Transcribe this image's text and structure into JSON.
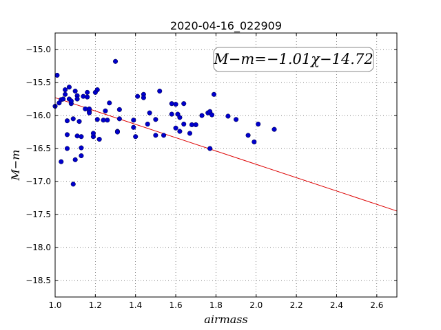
{
  "chart_data": {
    "type": "scatter",
    "title": "2020-04-16_022909",
    "xlabel": "airmass",
    "ylabel": "M−m",
    "xlim": [
      1.0,
      2.7
    ],
    "ylim": [
      -18.75,
      -14.75
    ],
    "y_inverted": true,
    "grid": true,
    "xticks": [
      1.0,
      1.2,
      1.4,
      1.6,
      1.8,
      2.0,
      2.2,
      2.4,
      2.6
    ],
    "xtick_labels": [
      "1.0",
      "1.2",
      "1.4",
      "1.6",
      "1.8",
      "2.0",
      "2.2",
      "2.4",
      "2.6"
    ],
    "yticks": [
      -15.0,
      -15.5,
      -16.0,
      -16.5,
      -17.0,
      -17.5,
      -18.0,
      -18.5
    ],
    "ytick_labels": [
      "−15.0",
      "−15.5",
      "−16.0",
      "−16.5",
      "−17.0",
      "−17.5",
      "−18.0",
      "−18.5"
    ],
    "annotation": "M−m=−1.01χ−14.72",
    "point_color": "#0000cc",
    "line_color": "#dd0000",
    "fit_line": {
      "slope": -1.01,
      "intercept": -14.72
    },
    "series": [
      {
        "x": [
          1.0,
          1.01,
          1.02,
          1.03,
          1.03,
          1.04,
          1.05,
          1.05,
          1.06,
          1.06,
          1.06,
          1.07,
          1.07,
          1.08,
          1.08,
          1.09,
          1.09,
          1.1,
          1.1,
          1.11,
          1.11,
          1.11,
          1.12,
          1.13,
          1.13,
          1.13,
          1.14,
          1.15,
          1.16,
          1.16,
          1.17,
          1.17,
          1.17,
          1.19,
          1.19,
          1.2,
          1.21,
          1.21,
          1.22,
          1.24,
          1.25,
          1.26,
          1.27,
          1.3,
          1.31,
          1.31,
          1.32,
          1.32,
          1.39,
          1.39,
          1.4,
          1.41,
          1.44,
          1.44,
          1.46,
          1.47,
          1.5,
          1.5,
          1.52,
          1.54,
          1.58,
          1.58,
          1.6,
          1.6,
          1.61,
          1.62,
          1.62,
          1.64,
          1.64,
          1.67,
          1.68,
          1.7,
          1.73,
          1.76,
          1.77,
          1.77,
          1.78,
          1.79,
          1.86,
          1.9,
          1.96,
          1.99,
          2.01,
          2.09
        ],
        "y": [
          -15.86,
          -15.39,
          -15.81,
          -16.7,
          -15.76,
          -15.75,
          -15.68,
          -15.61,
          -16.08,
          -16.29,
          -16.5,
          -15.57,
          -15.75,
          -15.82,
          -15.78,
          -16.05,
          -17.04,
          -16.67,
          -15.63,
          -15.7,
          -15.75,
          -16.31,
          -16.09,
          -16.49,
          -16.32,
          -16.61,
          -15.71,
          -15.9,
          -15.65,
          -15.72,
          -15.94,
          -15.9,
          -15.96,
          -16.32,
          -16.27,
          -15.65,
          -15.61,
          -16.06,
          -16.36,
          -16.07,
          -15.93,
          -16.07,
          -15.81,
          -15.18,
          -16.24,
          -16.25,
          -15.91,
          -16.05,
          -16.07,
          -16.18,
          -16.32,
          -15.71,
          -15.68,
          -15.73,
          -16.13,
          -15.96,
          -16.06,
          -16.3,
          -15.63,
          -16.3,
          -15.82,
          -15.98,
          -16.19,
          -15.83,
          -15.98,
          -16.24,
          -16.03,
          -15.82,
          -16.13,
          -16.27,
          -16.14,
          -16.14,
          -16.0,
          -15.96,
          -15.94,
          -16.5,
          -15.99,
          -15.68,
          -16.01,
          -16.06,
          -16.3,
          -16.4,
          -16.13,
          -16.21
        ]
      }
    ]
  }
}
